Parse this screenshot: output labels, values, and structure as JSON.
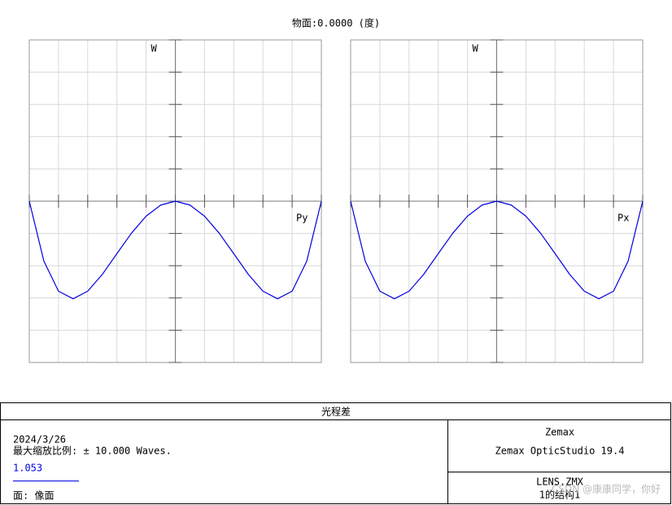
{
  "title": "物面:0.0000 (度)",
  "chart_data": [
    {
      "type": "line",
      "y_label": "W",
      "x_label": "Py",
      "color": "#0000e0",
      "grid": true,
      "x": [
        -1,
        -0.9,
        -0.8,
        -0.7,
        -0.6,
        -0.5,
        -0.4,
        -0.3,
        -0.2,
        -0.1,
        0,
        0.1,
        0.2,
        0.3,
        0.4,
        0.5,
        0.6,
        0.7,
        0.8,
        0.9,
        1
      ],
      "values": [
        0,
        -3.72,
        -5.58,
        -6.05,
        -5.58,
        -4.54,
        -3.25,
        -1.98,
        -0.93,
        -0.24,
        0,
        -0.24,
        -0.93,
        -1.98,
        -3.25,
        -4.54,
        -5.58,
        -6.05,
        -5.58,
        -3.72,
        0
      ],
      "xlim": [
        -1,
        1
      ],
      "ylim": [
        -10,
        10
      ],
      "xticks": [
        -1,
        -0.8,
        -0.6,
        -0.4,
        -0.2,
        0,
        0.2,
        0.4,
        0.6,
        0.8,
        1
      ],
      "yticks": [
        -10,
        -8,
        -6,
        -4,
        -2,
        0,
        2,
        4,
        6,
        8,
        10
      ]
    },
    {
      "type": "line",
      "y_label": "W",
      "x_label": "Px",
      "color": "#0000e0",
      "grid": true,
      "x": [
        -1,
        -0.9,
        -0.8,
        -0.7,
        -0.6,
        -0.5,
        -0.4,
        -0.3,
        -0.2,
        -0.1,
        0,
        0.1,
        0.2,
        0.3,
        0.4,
        0.5,
        0.6,
        0.7,
        0.8,
        0.9,
        1
      ],
      "values": [
        0,
        -3.72,
        -5.58,
        -6.05,
        -5.58,
        -4.54,
        -3.25,
        -1.98,
        -0.93,
        -0.24,
        0,
        -0.24,
        -0.93,
        -1.98,
        -3.25,
        -4.54,
        -5.58,
        -6.05,
        -5.58,
        -3.72,
        0
      ],
      "xlim": [
        -1,
        1
      ],
      "ylim": [
        -10,
        10
      ],
      "xticks": [
        -1,
        -0.8,
        -0.6,
        -0.4,
        -0.2,
        0,
        0.2,
        0.4,
        0.6,
        0.8,
        1
      ],
      "yticks": [
        -10,
        -8,
        -6,
        -4,
        -2,
        0,
        2,
        4,
        6,
        8,
        10
      ]
    }
  ],
  "footer": {
    "title": "光程差",
    "date": "2024/3/26",
    "scale": "最大缩放比例: ± 10.000 Waves.",
    "ratio": "1.053",
    "surface": "面: 像面",
    "brand": "Zemax",
    "product": "Zemax OpticStudio 19.4",
    "file": "LENS.ZMX",
    "config": "1的结构1"
  },
  "watermark": "CSDN @康康同学，你好"
}
